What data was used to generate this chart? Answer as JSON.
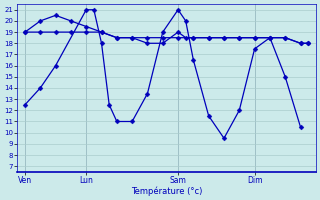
{
  "background_color": "#cceaea",
  "grid_color": "#aacccc",
  "line_color": "#0000bb",
  "marker_color": "#0000bb",
  "xlabel": "Température (°c)",
  "xlabel_color": "#0000bb",
  "tick_label_color": "#0000bb",
  "vline_color": "#88aabb",
  "x_tick_labels": [
    "Ven",
    "Lun",
    "Sam",
    "Dim"
  ],
  "x_tick_positions": [
    0,
    8,
    20,
    30
  ],
  "xlim": [
    -1,
    38
  ],
  "ylim": [
    6.5,
    21.5
  ],
  "yticks": [
    7,
    8,
    9,
    10,
    11,
    12,
    13,
    14,
    15,
    16,
    17,
    18,
    19,
    20,
    21
  ],
  "series1_x": [
    0,
    2,
    4,
    8,
    9,
    10,
    11,
    12,
    14,
    16,
    18,
    20,
    21,
    22,
    24,
    26,
    28,
    30,
    32,
    34,
    36
  ],
  "series1_y": [
    12.5,
    14.0,
    16.0,
    21.0,
    21.0,
    18.0,
    12.5,
    11.0,
    11.0,
    13.5,
    19.0,
    21.0,
    20.0,
    16.5,
    11.5,
    9.5,
    12.0,
    17.5,
    18.5,
    15.0,
    10.5
  ],
  "series2_x": [
    0,
    2,
    4,
    6,
    8,
    10,
    12,
    14,
    16,
    18,
    20,
    22,
    24,
    26,
    28,
    30,
    32,
    34,
    36,
    37
  ],
  "series2_y": [
    19.0,
    19.0,
    19.0,
    19.0,
    19.0,
    19.0,
    18.5,
    18.5,
    18.5,
    18.5,
    18.5,
    18.5,
    18.5,
    18.5,
    18.5,
    18.5,
    18.5,
    18.5,
    18.0,
    18.0
  ],
  "series3_x": [
    0,
    2,
    4,
    6,
    8,
    10,
    12,
    14,
    16,
    18,
    20,
    21,
    22,
    24,
    26,
    28,
    30,
    32,
    34,
    36,
    37
  ],
  "series3_y": [
    19.0,
    20.0,
    20.5,
    20.0,
    19.5,
    19.0,
    18.5,
    18.5,
    18.0,
    18.0,
    19.0,
    18.5,
    18.5,
    18.5,
    18.5,
    18.5,
    18.5,
    18.5,
    18.5,
    18.0,
    18.0
  ]
}
